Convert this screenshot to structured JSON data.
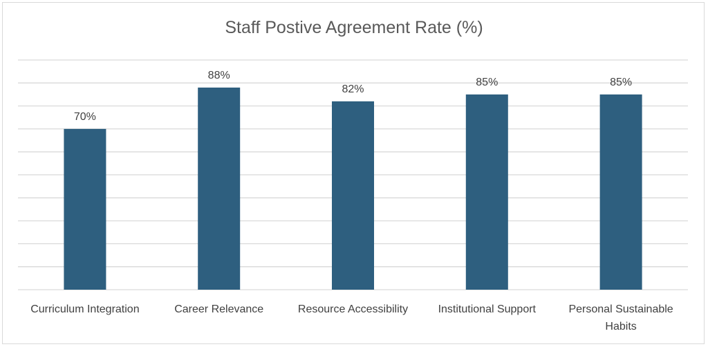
{
  "chart_data": {
    "type": "bar",
    "title": "Staff Postive Agreement Rate (%)",
    "categories": [
      "Curriculum Integration",
      "Career Relevance",
      "Resource Accessibility",
      "Institutional Support",
      "Personal Sustainable Habits"
    ],
    "values": [
      70,
      88,
      82,
      85,
      85
    ],
    "data_labels": [
      "70%",
      "88%",
      "82%",
      "85%",
      "85%"
    ],
    "xlabel": "",
    "ylabel": "",
    "ylim": [
      0,
      100
    ],
    "grid": true,
    "bar_color": "#2e5f7f"
  }
}
